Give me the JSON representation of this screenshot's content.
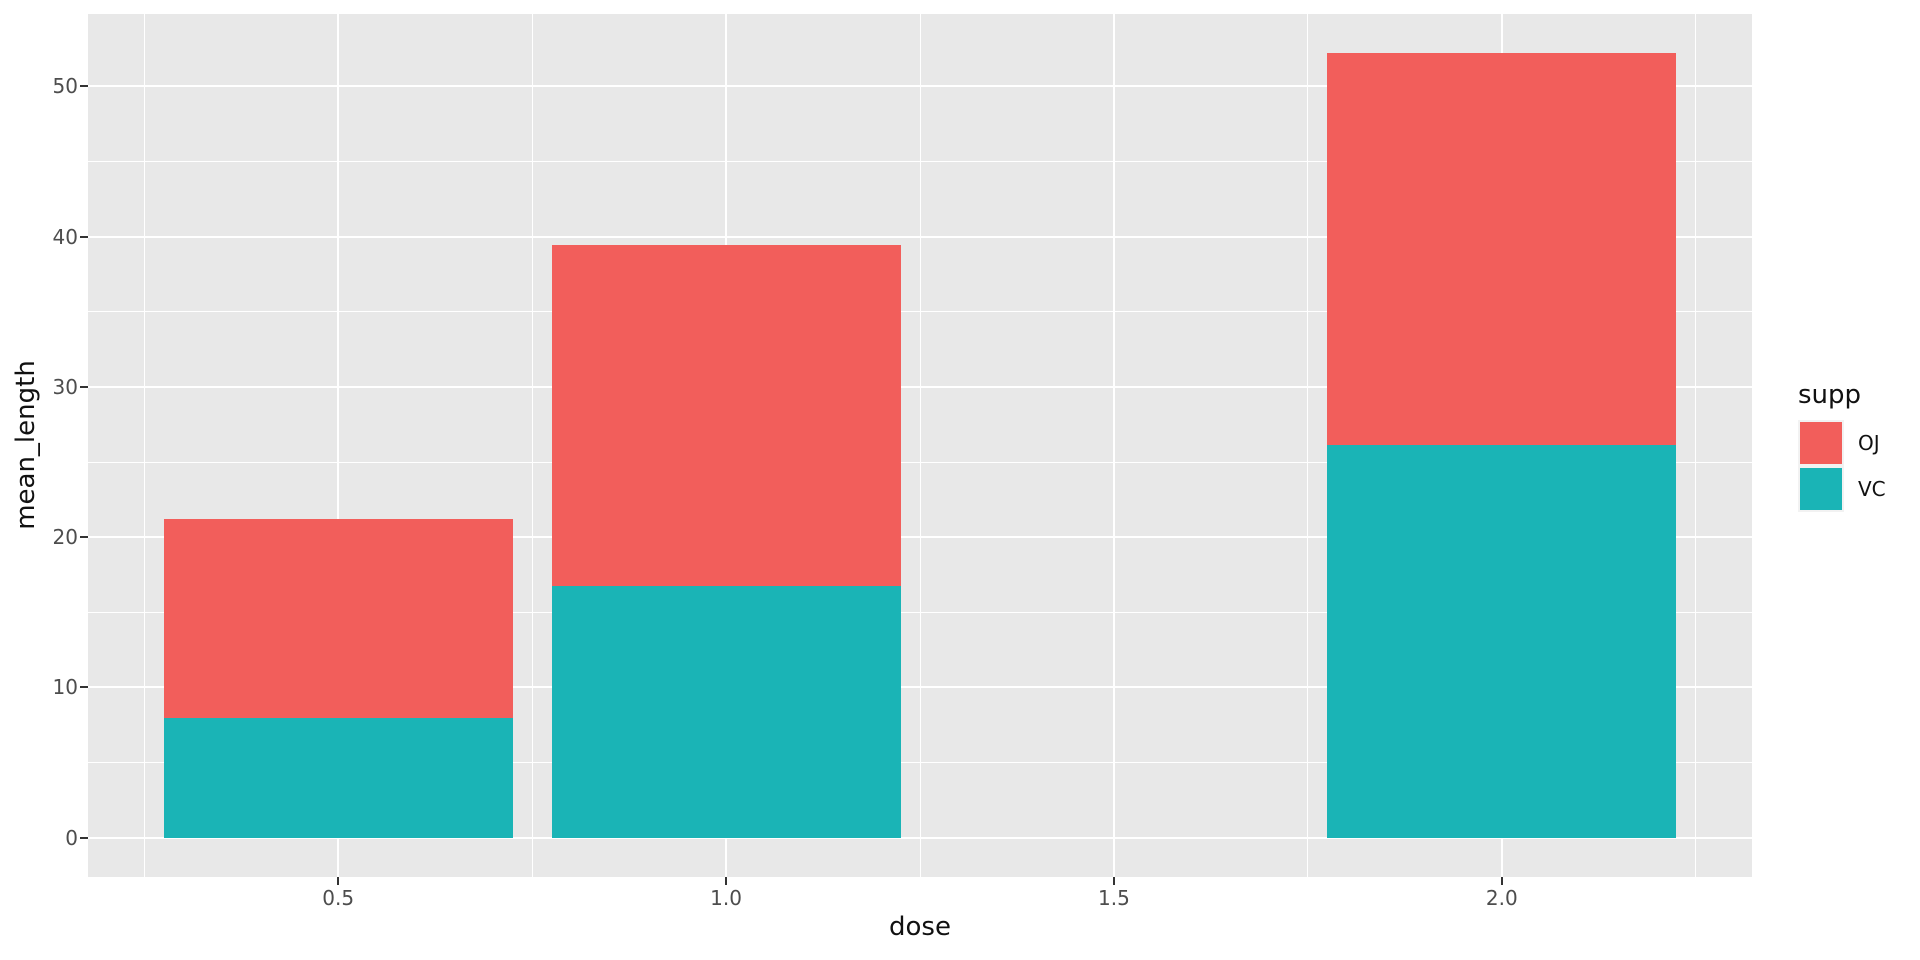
{
  "chart_data": {
    "type": "bar",
    "stacked": true,
    "title": "",
    "xlabel": "dose",
    "ylabel": "mean_length",
    "categories": [
      0.5,
      1.0,
      2.0
    ],
    "series": [
      {
        "name": "OJ",
        "color": "#F25E5B",
        "values": [
          13.23,
          22.7,
          26.06
        ]
      },
      {
        "name": "VC",
        "color": "#1AB4B6",
        "values": [
          7.98,
          16.77,
          26.14
        ]
      }
    ],
    "stack_order_bottom_to_top": [
      "VC",
      "OJ"
    ],
    "bar_width": 0.45,
    "x_ticks": [
      0.5,
      1.0,
      1.5,
      2.0
    ],
    "x_tick_labels": [
      "0.5",
      "1.0",
      "1.5",
      "2.0"
    ],
    "y_ticks": [
      0,
      10,
      20,
      30,
      40,
      50
    ],
    "y_tick_labels": [
      "0",
      "10",
      "20",
      "30",
      "40",
      "50"
    ],
    "x_minor_ticks": [
      0.25,
      0.75,
      1.25,
      1.75,
      2.25
    ],
    "y_minor_ticks": [
      5,
      15,
      25,
      35,
      45
    ],
    "xlim": [
      0.1775,
      2.3225
    ],
    "ylim": [
      -2.61,
      54.81
    ],
    "grid": "major+minor",
    "legend": {
      "title": "supp",
      "position": "right",
      "entries": [
        {
          "label": "OJ",
          "color": "#F25E5B"
        },
        {
          "label": "VC",
          "color": "#1AB4B6"
        }
      ]
    },
    "theme": {
      "panel_bg": "#E8E8E8",
      "grid_color": "#FFFFFF",
      "tick_color": "#333333",
      "axis_text_color": "#4D4D4D",
      "axis_title_color": "#111111",
      "plot_bg": "#FFFFFF",
      "legend_key_bg": "#F2F2F2"
    }
  }
}
